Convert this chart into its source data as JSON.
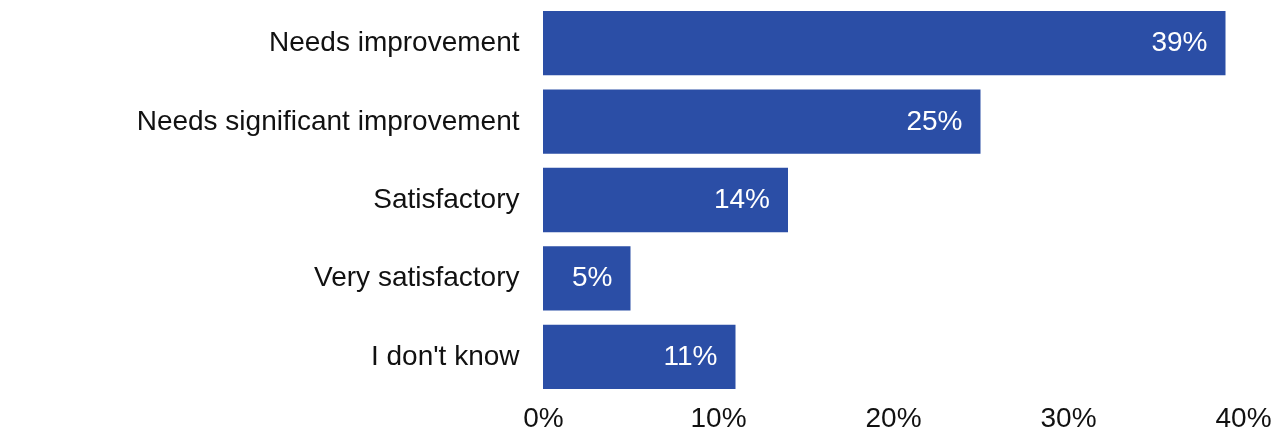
{
  "chart_data": {
    "type": "bar",
    "orientation": "horizontal",
    "categories": [
      "Needs improvement",
      "Needs significant improvement",
      "Satisfactory",
      "Very satisfactory",
      "I don't know"
    ],
    "values": [
      39,
      25,
      14,
      5,
      11
    ],
    "value_labels": [
      "39%",
      "25%",
      "14%",
      "5%",
      "11%"
    ],
    "color": "#2b4ea6",
    "xlim": [
      0,
      40
    ],
    "xticks": [
      {
        "value": 0,
        "label": "0%"
      },
      {
        "value": 10,
        "label": "10%"
      },
      {
        "value": 20,
        "label": "20%"
      },
      {
        "value": 30,
        "label": "30%"
      },
      {
        "value": 40,
        "label": "40%"
      }
    ],
    "grid": false
  }
}
